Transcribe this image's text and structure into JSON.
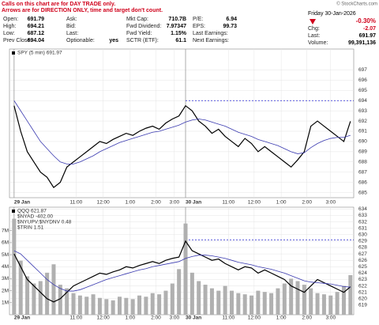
{
  "header": {
    "notes": [
      "Calls on this chart are for DAY TRADE only.",
      "Arrows are for DIRECTION ONLY, time and target don't count."
    ],
    "fields": [
      [
        {
          "label": "Open:",
          "value": "691.79"
        },
        {
          "label": "High:",
          "value": "694.21"
        },
        {
          "label": "Low:",
          "value": "687.12"
        },
        {
          "label": "Prev Close:",
          "value": "694.04"
        }
      ],
      [
        {
          "label": "Ask:",
          "value": ""
        },
        {
          "label": "Bid:",
          "value": ""
        },
        {
          "label": "Last:",
          "value": ""
        },
        {
          "label": "Optionable:",
          "value": "yes"
        }
      ],
      [
        {
          "label": "Mkt Cap:",
          "value": "710.7B"
        },
        {
          "label": "Fwd Dividend:",
          "value": "7.97347"
        },
        {
          "label": "Fwd Yield:",
          "value": "1.15%"
        },
        {
          "label": "SCTR (ETF):",
          "value": "61.1"
        }
      ],
      [
        {
          "label": "P/E:",
          "value": "6.94"
        },
        {
          "label": "EPS:",
          "value": "99.73"
        },
        {
          "label": "Last Earnings:",
          "value": ""
        },
        {
          "label": "Next Earnings:",
          "value": ""
        }
      ]
    ],
    "copyright": "© StockCharts.com",
    "date": "Friday 30-Jan-2026",
    "change_pct": "-0.30%",
    "stats": [
      {
        "label": "Chg:",
        "value": "-2.07"
      },
      {
        "label": "Last:",
        "value": "691.97"
      },
      {
        "label": "Volume:",
        "value": "99,391,136"
      }
    ]
  },
  "chart_data": [
    {
      "type": "line",
      "x": [
        0,
        1,
        2,
        3,
        4,
        5,
        6,
        7,
        8,
        9,
        10,
        11,
        12,
        13,
        14,
        15,
        16,
        17,
        18,
        19,
        20,
        21,
        22,
        23,
        24,
        25,
        26,
        27,
        28,
        29,
        30,
        31,
        32,
        33,
        34,
        35,
        36,
        37,
        38,
        39,
        40,
        41,
        42,
        43,
        44,
        45,
        46,
        47,
        48,
        49,
        50,
        51
      ],
      "series": [
        {
          "name": "SPY (5 min) 691.97",
          "color": "#000000",
          "values": [
            693.5,
            691,
            689,
            688,
            687,
            686.5,
            685.5,
            686,
            687.5,
            688,
            688.5,
            689,
            689.5,
            690,
            689.8,
            690.2,
            690.5,
            690.8,
            690.6,
            691,
            691.3,
            691.5,
            691.2,
            691.8,
            692.2,
            692.5,
            693.5,
            693,
            692,
            691.5,
            690.8,
            691.2,
            690.5,
            690,
            689.5,
            690.3,
            689.8,
            689,
            689.5,
            689,
            688.5,
            688,
            687.5,
            688.2,
            689,
            691.5,
            692,
            691.5,
            691,
            690.5,
            690,
            691.97
          ]
        },
        {
          "color": "#3a3ab0",
          "values": [
            694,
            693,
            692,
            691,
            690,
            689.3,
            688.6,
            688,
            687.8,
            687.8,
            688,
            688.3,
            688.6,
            689,
            689.3,
            689.6,
            689.9,
            690.1,
            690.3,
            690.5,
            690.7,
            690.9,
            691,
            691.2,
            691.4,
            691.6,
            691.9,
            692.1,
            692.2,
            692.1,
            691.9,
            691.7,
            691.5,
            691.2,
            690.9,
            690.7,
            690.5,
            690.2,
            690,
            689.8,
            689.6,
            689.3,
            689,
            688.8,
            688.9,
            689.4,
            689.8,
            690.1,
            690.3,
            690.4,
            690.4,
            690.6
          ]
        }
      ],
      "xlim": [
        -0.7,
        51.5
      ],
      "xticks": [
        {
          "value": 0,
          "label": "29 Jan"
        },
        {
          "value": 9.4,
          "label": "11:00"
        },
        {
          "value": 13.5,
          "label": "12:00"
        },
        {
          "value": 17.6,
          "label": "1:00"
        },
        {
          "value": 21.5,
          "label": "2:00"
        },
        {
          "value": 24.3,
          "label": "3:00"
        },
        {
          "value": 26,
          "label": "30 Jan"
        },
        {
          "value": 32.5,
          "label": "11:00"
        },
        {
          "value": 36.4,
          "label": "12:00"
        },
        {
          "value": 40.5,
          "label": "1:00"
        },
        {
          "value": 44.4,
          "label": "2:00"
        },
        {
          "value": 48,
          "label": "3:00"
        }
      ],
      "ylim": [
        684.5,
        697.5
      ],
      "yticks": [
        685,
        686,
        687,
        688,
        689,
        690,
        691,
        692,
        693,
        694,
        695,
        696,
        697
      ],
      "grid": true,
      "ref_line": {
        "value": 694,
        "from_x": 26,
        "color": "#2020d0"
      }
    },
    {
      "type": "line",
      "x": [
        0,
        1,
        2,
        3,
        4,
        5,
        6,
        7,
        8,
        9,
        10,
        11,
        12,
        13,
        14,
        15,
        16,
        17,
        18,
        19,
        20,
        21,
        22,
        23,
        24,
        25,
        26,
        27,
        28,
        29,
        30,
        31,
        32,
        33,
        34,
        35,
        36,
        37,
        38,
        39,
        40,
        41,
        42,
        43,
        44,
        45,
        46,
        47,
        48,
        49,
        50,
        51
      ],
      "series": [
        {
          "color": "#b0b0b0",
          "type": "bar",
          "axis": "y2",
          "values": [
            8000000,
            4500000,
            3200000,
            2600000,
            2800000,
            3500000,
            4200000,
            2500000,
            2200000,
            1800000,
            1600000,
            1500000,
            1700000,
            1400000,
            1300000,
            1200000,
            1500000,
            1400000,
            1300000,
            1600000,
            1500000,
            1800000,
            1700000,
            2000000,
            2600000,
            3800000,
            7600000,
            3500000,
            2800000,
            2500000,
            2200000,
            2000000,
            2400000,
            2000000,
            1800000,
            1700000,
            1600000,
            2000000,
            1900000,
            1800000,
            2200000,
            2600000,
            3000000,
            2800000,
            2500000,
            2200000,
            1800000,
            1700000,
            1600000,
            1900000,
            2400000,
            3300000
          ]
        },
        {
          "name": "QQQ 621.87",
          "color": "#000000",
          "values": [
            627,
            625,
            623,
            622,
            621,
            620,
            619.5,
            620,
            621,
            622,
            622.5,
            623,
            623.5,
            624,
            623.8,
            624.2,
            624.5,
            625,
            624.8,
            625.2,
            625.5,
            625.8,
            625.5,
            626,
            626.3,
            626.5,
            629,
            627.5,
            627,
            626.5,
            626,
            626.2,
            625.5,
            625,
            624.5,
            625,
            624.8,
            624,
            624.5,
            624,
            623.5,
            623,
            622,
            621.5,
            621,
            622,
            623,
            622.5,
            622,
            621.5,
            621,
            621.87
          ]
        },
        {
          "color": "#3a3ab0",
          "values": [
            627.5,
            627,
            626,
            625,
            624,
            623,
            622.2,
            621.6,
            621.2,
            621.2,
            621.4,
            621.8,
            622.2,
            622.6,
            623,
            623.3,
            623.6,
            623.9,
            624.2,
            624.5,
            624.7,
            625,
            625.2,
            625.4,
            625.6,
            625.8,
            626.3,
            626.6,
            626.8,
            626.8,
            626.7,
            626.5,
            626.3,
            626,
            625.7,
            625.5,
            625.3,
            625,
            624.8,
            624.6,
            624.3,
            624,
            623.6,
            623.2,
            622.8,
            622.6,
            622.5,
            622.4,
            622.3,
            622.1,
            621.9,
            621.8
          ]
        }
      ],
      "legend_extra": [
        "$NYAD -402.00",
        "$NYUPV:$NYDNV 0.48",
        "$TRIN 1.51"
      ],
      "xlim": [
        -0.7,
        51.5
      ],
      "xticks": [
        {
          "value": 0,
          "label": "29 Jan"
        },
        {
          "value": 9.4,
          "label": "11:00"
        },
        {
          "value": 13.5,
          "label": "12:00"
        },
        {
          "value": 17.6,
          "label": "1:00"
        },
        {
          "value": 21.5,
          "label": "2:00"
        },
        {
          "value": 24.3,
          "label": "3:00"
        },
        {
          "value": 26,
          "label": "30 Jan"
        },
        {
          "value": 32.5,
          "label": "11:00"
        },
        {
          "value": 36.4,
          "label": "12:00"
        },
        {
          "value": 40.5,
          "label": "1:00"
        },
        {
          "value": 44.4,
          "label": "2:00"
        },
        {
          "value": 48,
          "label": "3:00"
        }
      ],
      "ylim": [
        617.5,
        634.3
      ],
      "yticks": [
        619,
        620,
        621,
        622,
        623,
        624,
        625,
        626,
        627,
        628,
        629,
        630,
        631,
        632,
        633,
        634
      ],
      "y2lim": [
        0,
        8300000
      ],
      "y2ticks": [
        {
          "value": 1000000,
          "label": "1M"
        },
        {
          "value": 2000000,
          "label": "2M"
        },
        {
          "value": 3000000,
          "label": "3M"
        },
        {
          "value": 4000000,
          "label": "4M"
        },
        {
          "value": 5000000,
          "label": "5M"
        },
        {
          "value": 6000000,
          "label": "6M"
        },
        {
          "value": 7000000,
          "label": "7M"
        }
      ],
      "grid": true,
      "ref_line": {
        "value": 629.2,
        "from_x": 26,
        "color": "#2020d0"
      }
    }
  ]
}
